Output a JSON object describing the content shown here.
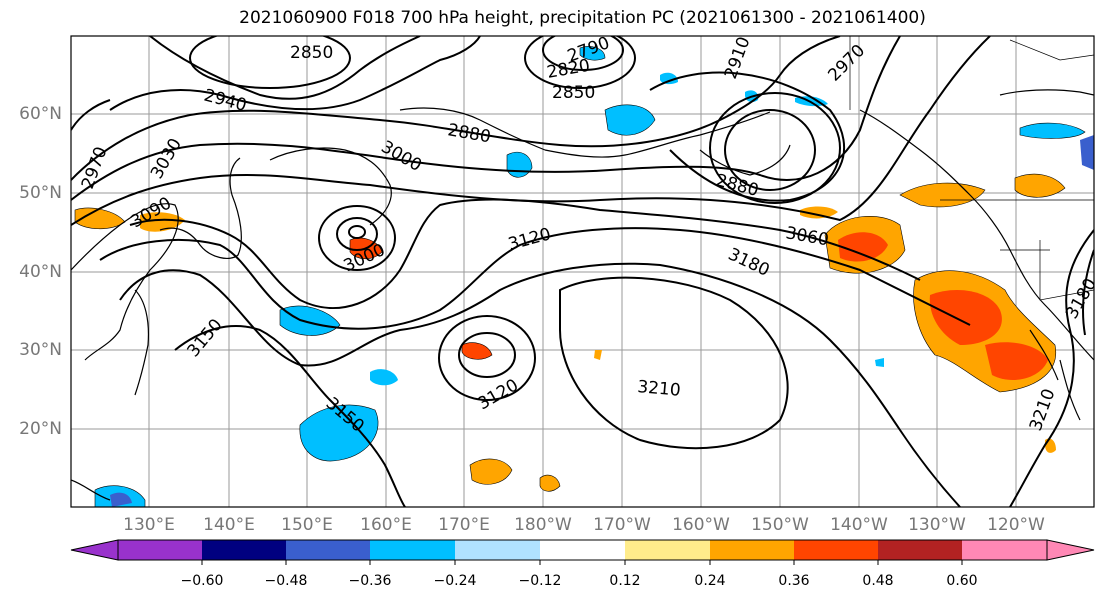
{
  "title": "2021060900 F018 700 hPa height, precipitation PC (2021061300 - 2021061400)",
  "lat_labels": [
    "60°N",
    "50°N",
    "40°N",
    "30°N",
    "20°N"
  ],
  "lon_labels": [
    "130°E",
    "140°E",
    "150°E",
    "160°E",
    "170°E",
    "180°W",
    "170°W",
    "160°W",
    "150°W",
    "140°W",
    "130°W",
    "120°W"
  ],
  "contour_labels": [
    "2850",
    "2790",
    "2820",
    "2850",
    "2910",
    "2970",
    "2940",
    "2880",
    "3000",
    "3030",
    "2970",
    "3090",
    "3000",
    "3120",
    "3060",
    "3180",
    "2880",
    "3150",
    "3210",
    "3120",
    "3150",
    "3210",
    "3180"
  ],
  "colorbar": {
    "colors": [
      "#9932CC",
      "#000080",
      "#3A5FCD",
      "#00BFFF",
      "#B0E2FF",
      "#FFFFFF",
      "#FFEC8B",
      "#FFA500",
      "#FF4500",
      "#B22222",
      "#FF88B5"
    ],
    "tick_labels": [
      "−0.60",
      "−0.48",
      "−0.36",
      "−0.24",
      "−0.12",
      "0.12",
      "0.24",
      "0.36",
      "0.48",
      "0.60"
    ]
  }
}
